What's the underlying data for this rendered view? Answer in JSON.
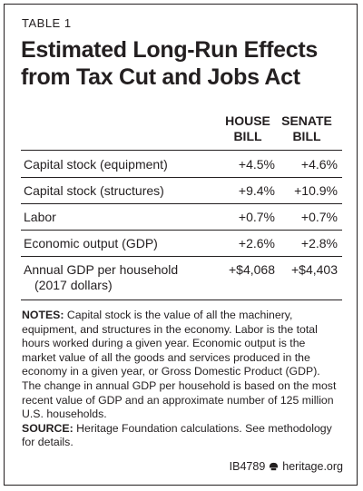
{
  "table_tag": "TABLE 1",
  "title": "Estimated Long-Run Effects from Tax Cut and Jobs Act",
  "columns": [
    {
      "line1": "HOUSE",
      "line2": "BILL"
    },
    {
      "line1": "SENATE",
      "line2": "BILL"
    }
  ],
  "rows": [
    {
      "label": "Capital stock (equipment)",
      "house": "+4.5%",
      "senate": "+4.6%"
    },
    {
      "label": "Capital stock (structures)",
      "house": "+9.4%",
      "senate": "+10.9%"
    },
    {
      "label": "Labor",
      "house": "+0.7%",
      "senate": "+0.7%"
    },
    {
      "label": "Economic output (GDP)",
      "house": "+2.6%",
      "senate": "+2.8%"
    },
    {
      "label": "Annual GDP per household",
      "label2": "(2017 dollars)",
      "house": "+$4,068",
      "senate": "+$4,403"
    }
  ],
  "notes": {
    "notes_label": "NOTES:",
    "notes_text": "Capital stock is the value of all the machinery, equipment, and structures in the economy. Labor is the total hours worked during a given year. Economic output is the market value of all the goods and services produced in the economy in a given year, or Gross Domestic Product (GDP). The change in annual GDP per household is based on the most recent value of GDP and an approximate number of 125 million U.S. households.",
    "source_label": "SOURCE:",
    "source_text": "Heritage Foundation calculations. See methodology for details."
  },
  "footer": {
    "code": "IB4789",
    "site": "heritage.org",
    "icon": "bell-icon"
  }
}
